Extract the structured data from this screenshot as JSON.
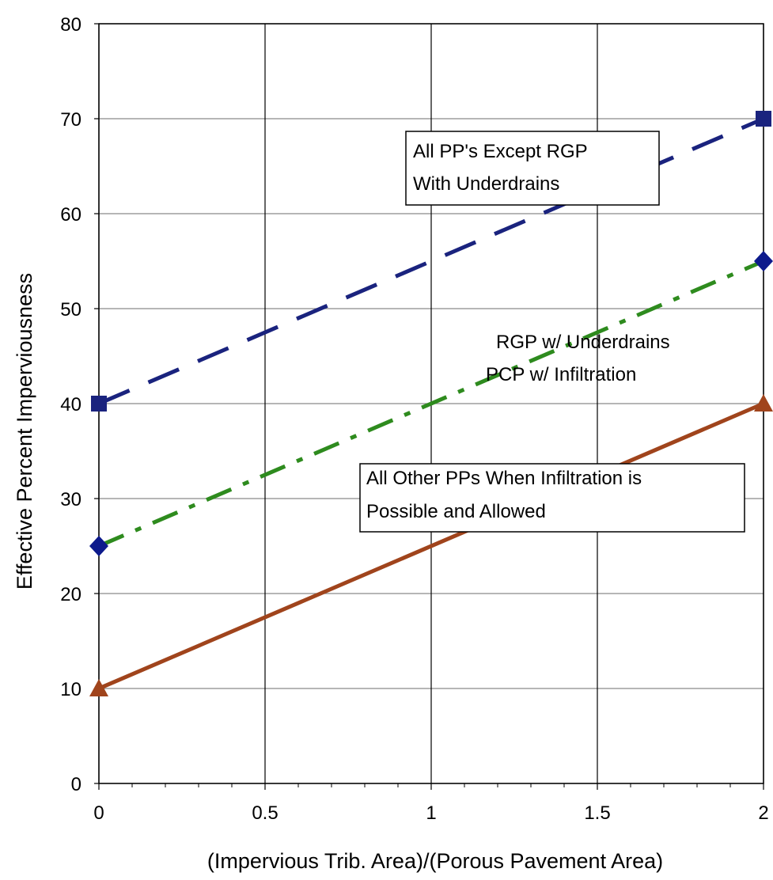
{
  "chart_data": {
    "type": "line",
    "xlabel": "(Impervious Trib. Area)/(Porous Pavement Area)",
    "ylabel": "Effective Percent Imperviousness",
    "xlim": [
      0,
      2
    ],
    "ylim": [
      0,
      80
    ],
    "x_ticks": [
      "0",
      "0.5",
      "1",
      "1.5",
      "2"
    ],
    "y_ticks": [
      "0",
      "10",
      "20",
      "30",
      "40",
      "50",
      "60",
      "70",
      "80"
    ],
    "grid": true,
    "series": [
      {
        "key": "all-pps-except-rgp",
        "color": "#1a237e",
        "line_style": "long-dash",
        "marker": "square",
        "x": [
          0,
          2
        ],
        "y": [
          40,
          70
        ]
      },
      {
        "key": "rgp-pcp",
        "color": "#2e8b1e",
        "line_style": "dash-dot",
        "marker": "diamond",
        "marker_color": "#0d1a8c",
        "x": [
          0,
          2
        ],
        "y": [
          25,
          55
        ]
      },
      {
        "key": "all-other-pps",
        "color": "#a0441c",
        "line_style": "solid",
        "marker": "triangle",
        "x": [
          0,
          2
        ],
        "y": [
          10,
          40
        ]
      }
    ],
    "annotations": [
      {
        "key": "all-pps-except-rgp",
        "lines": [
          "All PP's Except RGP",
          "With Underdrains"
        ]
      },
      {
        "key": "rgp-pcp",
        "lines": [
          "RGP w/ Underdrains",
          "PCP w/ Infiltration"
        ]
      },
      {
        "key": "all-other-pps",
        "lines": [
          "All Other PPs When Infiltration is",
          "Possible and Allowed"
        ]
      }
    ]
  }
}
